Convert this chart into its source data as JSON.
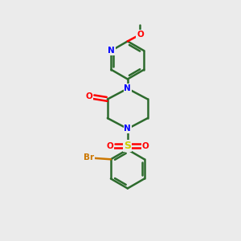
{
  "background_color": "#ebebeb",
  "bond_color": "#2d6b2d",
  "nitrogen_color": "#0000ff",
  "oxygen_color": "#ff0000",
  "sulfur_color": "#cccc00",
  "bromine_color": "#cc7700",
  "line_width": 1.8,
  "figsize": [
    3.0,
    3.0
  ],
  "dpi": 100,
  "xlim": [
    0,
    10
  ],
  "ylim": [
    0,
    10
  ]
}
